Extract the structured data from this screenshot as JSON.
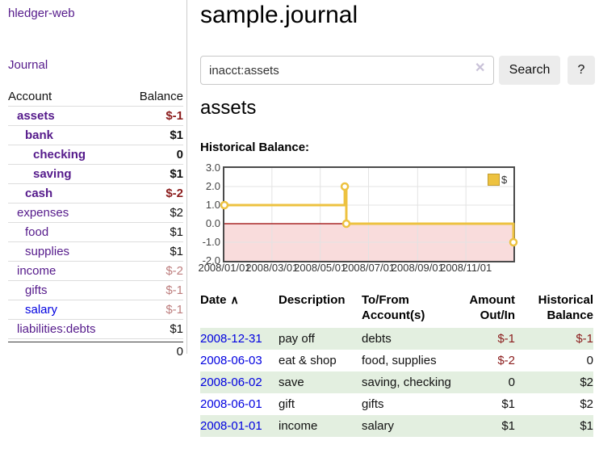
{
  "brand": "hledger-web",
  "nav": {
    "journal": "Journal"
  },
  "page": {
    "title": "sample.journal"
  },
  "search": {
    "value": "inacct:assets",
    "clear_icon": "✕",
    "search_button": "Search",
    "help_button": "?"
  },
  "account_view": {
    "heading": "assets",
    "chart_title": "Historical Balance:"
  },
  "sidebar_accounts": {
    "col_account": "Account",
    "col_balance": "Balance",
    "rows": [
      {
        "name": "assets",
        "depth": 1,
        "bold": true,
        "balance": "$-1",
        "neg": "strong"
      },
      {
        "name": "bank",
        "depth": 2,
        "bold": true,
        "balance": "$1"
      },
      {
        "name": "checking",
        "depth": 3,
        "bold": true,
        "balance": "0"
      },
      {
        "name": "saving",
        "depth": 3,
        "bold": true,
        "balance": "$1"
      },
      {
        "name": "cash",
        "depth": 2,
        "bold": true,
        "balance": "$-2",
        "neg": "strong"
      },
      {
        "name": "expenses",
        "depth": 1,
        "bold": false,
        "balance": "$2"
      },
      {
        "name": "food",
        "depth": 2,
        "bold": false,
        "balance": "$1"
      },
      {
        "name": "supplies",
        "depth": 2,
        "bold": false,
        "balance": "$1"
      },
      {
        "name": "income",
        "depth": 1,
        "bold": false,
        "balance": "$-2",
        "neg": "muted"
      },
      {
        "name": "gifts",
        "depth": 2,
        "bold": false,
        "balance": "$-1",
        "neg": "muted"
      },
      {
        "name": "salary",
        "depth": 2,
        "bold": false,
        "blue": true,
        "balance": "$-1",
        "neg": "muted"
      },
      {
        "name": "liabilities:debts",
        "depth": 1,
        "bold": false,
        "balance": "$1"
      }
    ],
    "total": "0"
  },
  "chart_data": {
    "type": "line",
    "title": "Historical Balance:",
    "step": "after",
    "x_range": [
      "2008/01/01",
      "2008/12/31"
    ],
    "ylim": [
      -2,
      3
    ],
    "x_ticks": [
      "2008/01/01",
      "2008/03/01",
      "2008/05/01",
      "2008/07/01",
      "2008/09/01",
      "2008/11/01"
    ],
    "y_ticks": [
      "3.0",
      "2.0",
      "1.0",
      "0.0",
      "-1.0",
      "-2.0"
    ],
    "series": [
      {
        "name": "$",
        "color": "#EDC240",
        "points": [
          {
            "x": "2008/01/01",
            "y": 1
          },
          {
            "x": "2008/06/01",
            "y": 2
          },
          {
            "x": "2008/06/03",
            "y": 0
          },
          {
            "x": "2008/12/31",
            "y": -1
          }
        ]
      }
    ],
    "legend": {
      "label": "$",
      "position": "top-right"
    },
    "negative_region_color": "#f9dcdc",
    "zero_line_color": "#990000",
    "grid_color": "#e3e3e3",
    "border_color": "#4a4a4a"
  },
  "register": {
    "columns": [
      {
        "label": "Date",
        "sort_indicator": "∧",
        "align": "left",
        "sortable": true
      },
      {
        "label": "Description",
        "align": "left"
      },
      {
        "label": "To/From Account(s)",
        "align": "left"
      },
      {
        "label": "Amount Out/In",
        "align": "right"
      },
      {
        "label": "Historical Balance",
        "align": "right"
      }
    ],
    "rows": [
      {
        "date": "2008-12-31",
        "description": "pay off",
        "accounts": "debts",
        "amount": "$-1",
        "amount_neg": true,
        "balance": "$-1",
        "balance_neg": true
      },
      {
        "date": "2008-06-03",
        "description": "eat & shop",
        "accounts": "food, supplies",
        "amount": "$-2",
        "amount_neg": true,
        "balance": "0"
      },
      {
        "date": "2008-06-02",
        "description": "save",
        "accounts": "saving, checking",
        "amount": "0",
        "balance": "$2"
      },
      {
        "date": "2008-06-01",
        "description": "gift",
        "accounts": "gifts",
        "amount": "$1",
        "balance": "$2"
      },
      {
        "date": "2008-01-01",
        "description": "income",
        "accounts": "salary",
        "amount": "$1",
        "balance": "$1"
      }
    ]
  },
  "colors": {
    "link_purple": "#551a8b",
    "link_blue": "#0000e0",
    "negative_strong": "#8b1c1c",
    "negative_muted": "#bd7d7d",
    "row_green": "#e3efe0",
    "series_gold": "#EDC240"
  }
}
